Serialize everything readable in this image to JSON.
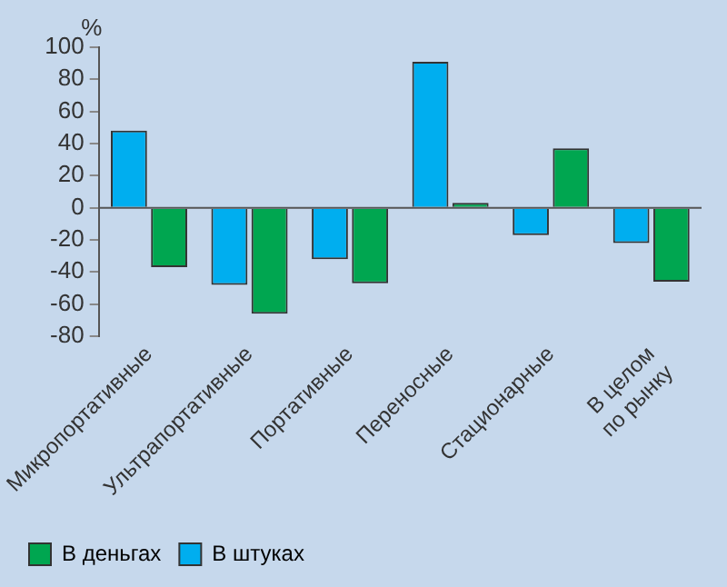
{
  "chart_data": {
    "type": "bar",
    "ylabel": "%",
    "categories": [
      "Микропортативные",
      "Ультрапортативные",
      "Портативные",
      "Переносные",
      "Стационарные",
      "В целом\nпо рынку"
    ],
    "series": [
      {
        "name": "В штуках",
        "color": "#00aeef",
        "values": [
          48,
          -48,
          -32,
          91,
          -17,
          -22
        ]
      },
      {
        "name": "В деньгах",
        "color": "#00a650",
        "values": [
          -37,
          -66,
          -47,
          3,
          37,
          -46
        ]
      }
    ],
    "ylim": [
      -80,
      100
    ],
    "yticks": [
      -80,
      -60,
      -40,
      -20,
      0,
      20,
      40,
      60,
      80,
      100
    ],
    "ref_lines": [
      {
        "axis": "y",
        "value": 0,
        "color": "#555555"
      }
    ],
    "grid": false,
    "legend": "bottom left"
  }
}
